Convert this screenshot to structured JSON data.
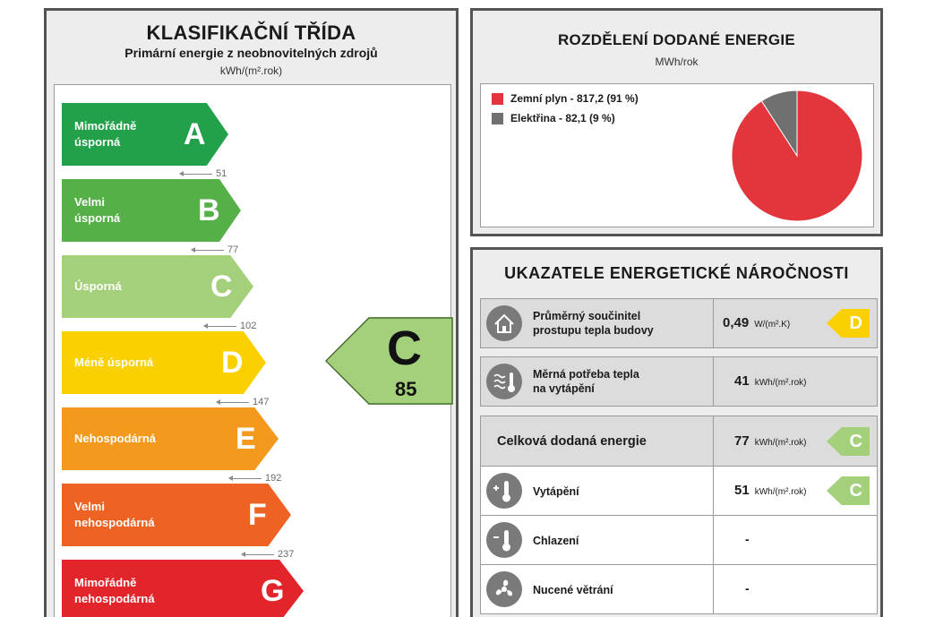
{
  "classification": {
    "title": "KLASIFIKAČNÍ TŘÍDA",
    "subtitle": "Primární energie z neobnovitelných zdrojů",
    "unit": "kWh/(m².rok)",
    "classes": [
      {
        "letter": "A",
        "label_line1": "Mimořádně",
        "label_line2": "úsporná",
        "color": "#23a04a"
      },
      {
        "letter": "B",
        "label_line1": "Velmi",
        "label_line2": "úsporná",
        "color": "#56b048"
      },
      {
        "letter": "C",
        "label_line1": "Úsporná",
        "label_line2": "",
        "color": "#a4d07c"
      },
      {
        "letter": "D",
        "label_line1": "Méně úsporná",
        "label_line2": "",
        "color": "#fbd000"
      },
      {
        "letter": "E",
        "label_line1": "Nehospodárná",
        "label_line2": "",
        "color": "#f39a1e"
      },
      {
        "letter": "F",
        "label_line1": "Velmi",
        "label_line2": "nehospodárná",
        "color": "#ee6224"
      },
      {
        "letter": "G",
        "label_line1": "Mimořádně",
        "label_line2": "nehospodárná",
        "color": "#e2252b"
      }
    ],
    "thresholds": [
      "51",
      "77",
      "102",
      "147",
      "192",
      "237"
    ],
    "current": {
      "letter": "C",
      "value": "85",
      "color": "#a4d07c"
    }
  },
  "energy_split": {
    "title": "ROZDĚLENÍ DODANÉ ENERGIE",
    "unit": "MWh/rok",
    "legend": [
      {
        "label": "Zemní plyn - 817,2 (91 %)",
        "color": "#e2363c"
      },
      {
        "label": "Elektřina - 82,1 (9 %)",
        "color": "#707070"
      }
    ]
  },
  "chart_data": {
    "type": "pie",
    "categories": [
      "Zemní plyn",
      "Elektřina"
    ],
    "values": [
      817.2,
      82.1
    ],
    "percent": [
      91,
      9
    ],
    "colors": [
      "#e2363c",
      "#707070"
    ],
    "title": "ROZDĚLENÍ DODANÉ ENERGIE",
    "unit": "MWh/rok",
    "legend_position": "top-left"
  },
  "indicators": {
    "title": "UKAZATELE ENERGETICKÉ NÁROČNOSTI",
    "rows": [
      {
        "icon": "house-icon",
        "label_line1": "Průměrný součinitel",
        "label_line2": "prostupu tepla budovy",
        "value": "0,49",
        "unit": "W/(m².K)",
        "badge": "D",
        "badge_color": "#fbd000"
      },
      {
        "icon": "heat-demand-icon",
        "label_line1": "Měrná potřeba tepla",
        "label_line2": "na vytápění",
        "value": "41",
        "unit": "kWh/(m².rok)",
        "badge": "",
        "badge_color": ""
      },
      {
        "icon": "",
        "label_line1": "Celková dodaná energie",
        "label_line2": "",
        "value": "77",
        "unit": "kWh/(m².rok)",
        "badge": "C",
        "badge_color": "#a4d07c"
      },
      {
        "icon": "thermometer-plus-icon",
        "label_line1": "Vytápění",
        "label_line2": "",
        "value": "51",
        "unit": "kWh/(m².rok)",
        "badge": "C",
        "badge_color": "#a4d07c"
      },
      {
        "icon": "thermometer-minus-icon",
        "label_line1": "Chlazení",
        "label_line2": "",
        "value": "-",
        "unit": "",
        "badge": "",
        "badge_color": ""
      },
      {
        "icon": "fan-icon",
        "label_line1": "Nucené větrání",
        "label_line2": "",
        "value": "-",
        "unit": "",
        "badge": "",
        "badge_color": ""
      }
    ]
  }
}
